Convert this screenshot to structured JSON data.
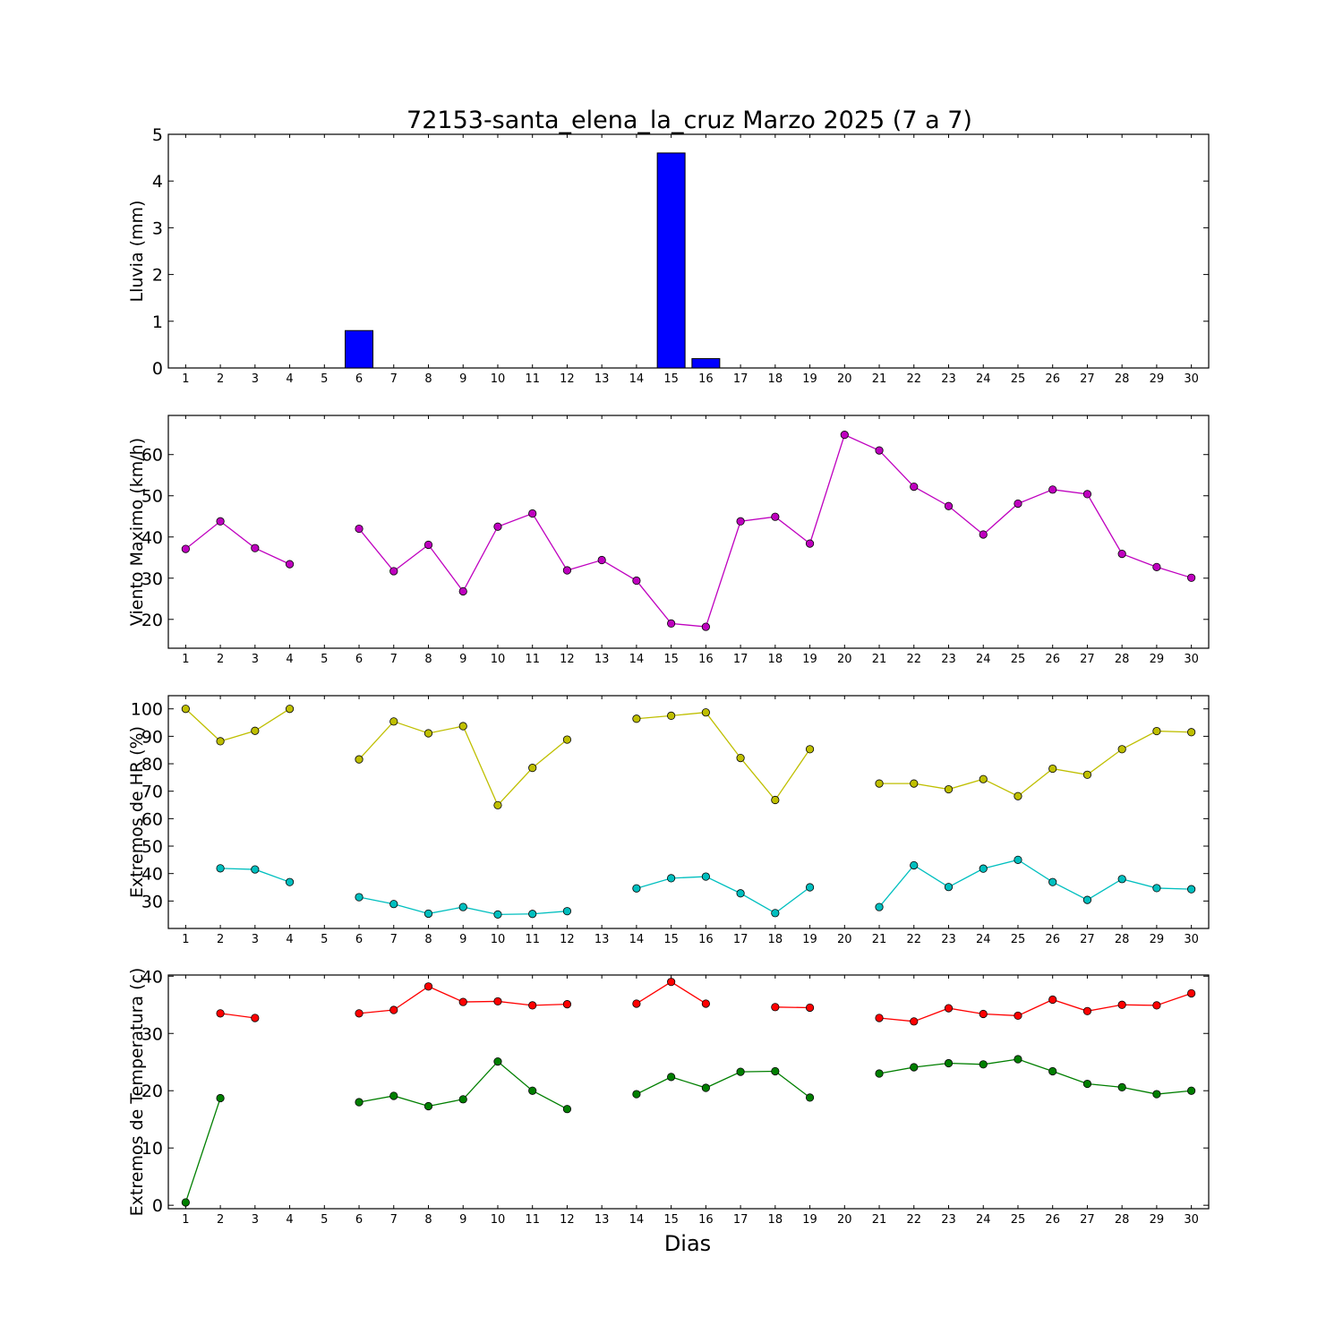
{
  "chart_data": [
    {
      "type": "bar",
      "title": "72153-santa_elena_la_cruz Marzo 2025  (7 a 7)",
      "ylabel": "Lluvia (mm)",
      "xlabel": "",
      "ylim": [
        0,
        5
      ],
      "yticks": [
        0,
        1,
        2,
        3,
        4,
        5
      ],
      "categories": [
        1,
        2,
        3,
        4,
        5,
        6,
        7,
        8,
        9,
        10,
        11,
        12,
        13,
        14,
        15,
        16,
        17,
        18,
        19,
        20,
        21,
        22,
        23,
        24,
        25,
        26,
        27,
        28,
        29,
        30
      ],
      "values": [
        0,
        0,
        0,
        0,
        0,
        0.8,
        0,
        0,
        0,
        0,
        0,
        0,
        0,
        0,
        4.6,
        0.2,
        0,
        0,
        0,
        0,
        0,
        0,
        0,
        0,
        0,
        0,
        0,
        0,
        0,
        0
      ],
      "colors": {
        "bar": "#0000ff"
      },
      "grid": false
    },
    {
      "type": "line",
      "title": "",
      "ylabel": "Viento Maximo (km/h)",
      "xlabel": "",
      "ylim": [
        13,
        69.5
      ],
      "yticks": [
        20,
        30,
        40,
        50,
        60
      ],
      "x": [
        1,
        2,
        3,
        4,
        5,
        6,
        7,
        8,
        9,
        10,
        11,
        12,
        13,
        14,
        15,
        16,
        17,
        18,
        19,
        20,
        21,
        22,
        23,
        24,
        25,
        26,
        27,
        28,
        29,
        30
      ],
      "series": [
        {
          "values": [
            37.1,
            43.8,
            37.3,
            33.4,
            null,
            42.0,
            31.7,
            38.1,
            26.8,
            42.5,
            45.7,
            31.9,
            34.4,
            29.4,
            19.0,
            18.2,
            43.8,
            44.9,
            38.4,
            64.8,
            61.0,
            52.2,
            47.5,
            40.6,
            48.1,
            51.5,
            50.4,
            35.9,
            32.7,
            30.1
          ],
          "color": "#bf00bf"
        }
      ],
      "grid": false
    },
    {
      "type": "line",
      "title": "",
      "ylabel": "Extremos de HR (%)",
      "xlabel": "",
      "ylim": [
        20,
        104.8
      ],
      "yticks": [
        30,
        40,
        50,
        60,
        70,
        80,
        90,
        100
      ],
      "x": [
        1,
        2,
        3,
        4,
        5,
        6,
        7,
        8,
        9,
        10,
        11,
        12,
        13,
        14,
        15,
        16,
        17,
        18,
        19,
        20,
        21,
        22,
        23,
        24,
        25,
        26,
        27,
        28,
        29,
        30
      ],
      "series": [
        {
          "values": [
            100,
            88.2,
            92.0,
            100,
            null,
            81.6,
            95.4,
            91.1,
            93.7,
            64.9,
            78.5,
            88.8,
            null,
            96.4,
            97.5,
            98.7,
            82.1,
            66.8,
            85.3,
            null,
            72.8,
            72.8,
            70.7,
            74.4,
            68.2,
            78.2,
            76.0,
            85.3,
            91.9,
            91.5
          ],
          "color": "#bfbf00"
        },
        {
          "values": [
            null,
            41.9,
            41.5,
            36.9,
            null,
            31.4,
            28.9,
            25.4,
            27.8,
            25.1,
            25.3,
            26.3,
            null,
            34.6,
            38.3,
            38.9,
            32.8,
            25.6,
            35.0,
            null,
            27.8,
            43.0,
            35.1,
            41.8,
            45.0,
            36.9,
            30.4,
            38.0,
            34.7,
            34.3
          ],
          "color": "#00bfbf"
        }
      ],
      "grid": false
    },
    {
      "type": "line",
      "title": "",
      "ylabel": "Extremos de Temperatura (c)",
      "xlabel": "Dias",
      "ylim": [
        -0.6,
        40.2
      ],
      "yticks": [
        0,
        10,
        20,
        30,
        40
      ],
      "x": [
        1,
        2,
        3,
        4,
        5,
        6,
        7,
        8,
        9,
        10,
        11,
        12,
        13,
        14,
        15,
        16,
        17,
        18,
        19,
        20,
        21,
        22,
        23,
        24,
        25,
        26,
        27,
        28,
        29,
        30
      ],
      "series": [
        {
          "values": [
            null,
            33.5,
            32.7,
            null,
            null,
            33.5,
            34.1,
            38.2,
            35.5,
            35.6,
            34.9,
            35.1,
            null,
            35.2,
            39.0,
            35.2,
            null,
            34.6,
            34.5,
            null,
            32.7,
            32.1,
            34.4,
            33.4,
            33.1,
            35.9,
            33.9,
            35.0,
            34.9,
            37.0
          ],
          "color": "#ff0000"
        },
        {
          "values": [
            0.5,
            18.7,
            null,
            null,
            null,
            18.0,
            19.1,
            17.3,
            18.5,
            25.1,
            20.0,
            16.8,
            null,
            19.4,
            22.4,
            20.5,
            23.3,
            23.4,
            18.8,
            null,
            23.0,
            24.1,
            24.8,
            24.6,
            25.5,
            23.4,
            21.2,
            20.6,
            19.4,
            20.0
          ],
          "color": "#007f00"
        }
      ],
      "grid": false
    }
  ]
}
